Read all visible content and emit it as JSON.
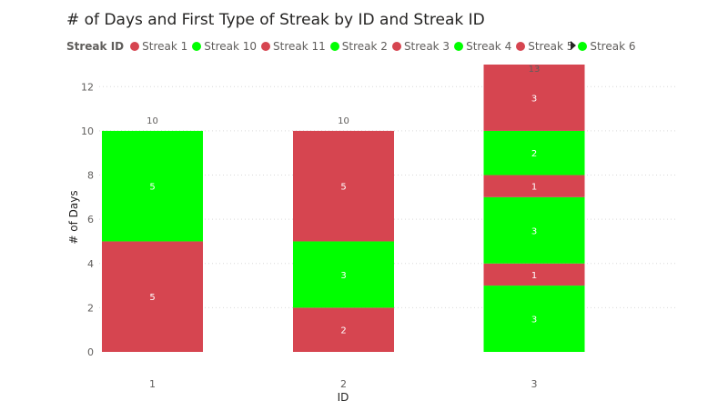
{
  "chart_data": {
    "type": "bar",
    "stacked": true,
    "title": "# of Days and First Type of Streak by ID and Streak ID",
    "xlabel": "ID",
    "ylabel": "# of Days",
    "ylim": [
      0,
      13
    ],
    "yticks": [
      0,
      2,
      4,
      6,
      8,
      10,
      12
    ],
    "grid": true,
    "legend_placement": "top-left",
    "legend_title": "Streak ID",
    "legend": [
      {
        "name": "Streak 1",
        "color": "#d64550"
      },
      {
        "name": "Streak 10",
        "color": "#00ff00"
      },
      {
        "name": "Streak 11",
        "color": "#d64550"
      },
      {
        "name": "Streak 2",
        "color": "#00ff00"
      },
      {
        "name": "Streak 3",
        "color": "#d64550"
      },
      {
        "name": "Streak 4",
        "color": "#00ff00"
      },
      {
        "name": "Streak 5",
        "color": "#d64550"
      },
      {
        "name": "Streak 6",
        "color": "#00ff00"
      }
    ],
    "categories": [
      "1",
      "2",
      "3"
    ],
    "stacks": [
      {
        "category": "1",
        "total": 10,
        "segments": [
          {
            "value": 5,
            "color": "#d64550"
          },
          {
            "value": 5,
            "color": "#00ff00"
          }
        ]
      },
      {
        "category": "2",
        "total": 10,
        "segments": [
          {
            "value": 2,
            "color": "#d64550"
          },
          {
            "value": 3,
            "color": "#00ff00"
          },
          {
            "value": 5,
            "color": "#d64550"
          }
        ]
      },
      {
        "category": "3",
        "total": 13,
        "segments": [
          {
            "value": 3,
            "color": "#00ff00"
          },
          {
            "value": 1,
            "color": "#d64550"
          },
          {
            "value": 3,
            "color": "#00ff00"
          },
          {
            "value": 1,
            "color": "#d64550"
          },
          {
            "value": 2,
            "color": "#00ff00"
          },
          {
            "value": 3,
            "color": "#d64550"
          }
        ]
      }
    ]
  }
}
